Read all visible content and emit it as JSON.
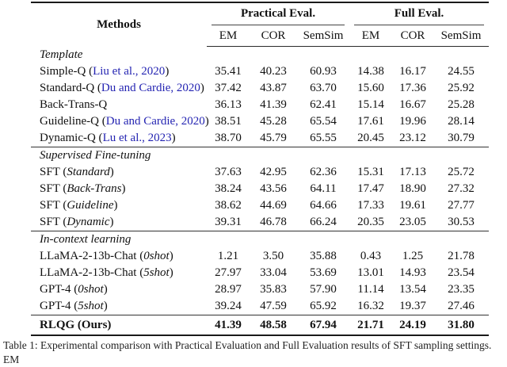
{
  "colors": {
    "citation_blue": "#2424b2",
    "rule_dark": "#1a1a1a"
  },
  "table": {
    "methods_header": "Methods",
    "groups": [
      {
        "label": "Practical Eval.",
        "subcols": [
          "EM",
          "COR",
          "SemSim"
        ]
      },
      {
        "label": "Full Eval.",
        "subcols": [
          "EM",
          "COR",
          "SemSim"
        ]
      }
    ],
    "sections": [
      {
        "title": "Template",
        "rows": [
          {
            "pre": "Simple-Q (",
            "cite": "Liu et al., 2020",
            "post": ")",
            "values": [
              "35.41",
              "40.23",
              "60.93",
              "14.38",
              "16.17",
              "24.55"
            ]
          },
          {
            "pre": "Standard-Q (",
            "cite": "Du and Cardie, 2020",
            "post": ")",
            "values": [
              "37.42",
              "43.87",
              "63.70",
              "15.60",
              "17.36",
              "25.92"
            ]
          },
          {
            "pre": "Back-Trans-Q",
            "cite": "",
            "post": "",
            "values": [
              "36.13",
              "41.39",
              "62.41",
              "15.14",
              "16.67",
              "25.28"
            ]
          },
          {
            "pre": "Guideline-Q (",
            "cite": "Du and Cardie, 2020",
            "post": ")",
            "values": [
              "38.51",
              "45.28",
              "65.54",
              "17.61",
              "19.96",
              "28.14"
            ]
          },
          {
            "pre": "Dynamic-Q (",
            "cite": "Lu et al., 2023",
            "post": ")",
            "values": [
              "38.70",
              "45.79",
              "65.55",
              "20.45",
              "23.12",
              "30.79"
            ]
          }
        ]
      },
      {
        "title": "Supervised Fine-tuning",
        "rows": [
          {
            "pre": "SFT (",
            "italic": "Standard",
            "post": ")",
            "values": [
              "37.63",
              "42.95",
              "62.36",
              "15.31",
              "17.13",
              "25.72"
            ]
          },
          {
            "pre": "SFT (",
            "italic": "Back-Trans",
            "post": ")",
            "values": [
              "38.24",
              "43.56",
              "64.11",
              "17.47",
              "18.90",
              "27.32"
            ]
          },
          {
            "pre": "SFT (",
            "italic": "Guideline",
            "post": ")",
            "values": [
              "38.62",
              "44.69",
              "64.66",
              "17.33",
              "19.61",
              "27.77"
            ]
          },
          {
            "pre": "SFT (",
            "italic": "Dynamic",
            "post": ")",
            "values": [
              "39.31",
              "46.78",
              "66.24",
              "20.35",
              "23.05",
              "30.53"
            ]
          }
        ]
      },
      {
        "title": "In-context learning",
        "rows": [
          {
            "pre": "LLaMA-2-13b-Chat (",
            "italic": "0shot",
            "post": ")",
            "values": [
              "1.21",
              "3.50",
              "35.88",
              "0.43",
              "1.25",
              "21.78"
            ]
          },
          {
            "pre": "LLaMA-2-13b-Chat (",
            "italic": "5shot",
            "post": ")",
            "values": [
              "27.97",
              "33.04",
              "53.69",
              "13.01",
              "14.93",
              "23.54"
            ]
          },
          {
            "pre": "GPT-4 (",
            "italic": "0shot",
            "post": ")",
            "values": [
              "28.97",
              "35.83",
              "57.90",
              "11.14",
              "13.54",
              "23.35"
            ]
          },
          {
            "pre": "GPT-4 (",
            "italic": "5shot",
            "post": ")",
            "values": [
              "39.24",
              "47.59",
              "65.92",
              "16.32",
              "19.37",
              "27.46"
            ]
          }
        ]
      }
    ],
    "final_row": {
      "label": "RLQG (Ours)",
      "values": [
        "41.39",
        "48.58",
        "67.94",
        "21.71",
        "24.19",
        "31.80"
      ]
    }
  },
  "caption_fragment": "Table 1: Experimental comparison with Practical Evaluation and Full Evaluation results of SFT sampling settings. EM"
}
